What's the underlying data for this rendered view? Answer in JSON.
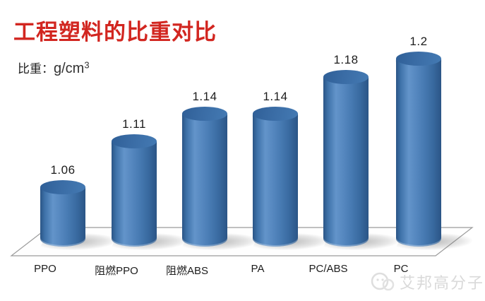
{
  "page": {
    "background": "#ffffff"
  },
  "title": {
    "text": "工程塑料的比重对比",
    "color": "#d22620"
  },
  "axis_label": {
    "prefix": "比重：",
    "unit": "g/cm",
    "exponent": "3"
  },
  "chart_data": {
    "type": "bar",
    "variant": "3d-cylinder",
    "title": "工程塑料的比重对比",
    "ylabel": "比重：g/cm³",
    "categories": [
      "PPO",
      "阻燃PPO",
      "阻燃ABS",
      "PA",
      "PC/ABS",
      "PC"
    ],
    "values": [
      1.06,
      1.11,
      1.14,
      1.14,
      1.18,
      1.2
    ],
    "data_labels": [
      "1.06",
      "1.11",
      "1.14",
      "1.14",
      "1.18",
      "1.2"
    ],
    "value_axis_baseline": 0.99,
    "grid": false,
    "legend": false,
    "bar_color": "#4679b2",
    "floor_edge_color": "#9b9b9b"
  },
  "watermark": {
    "logo": "aibang-logo",
    "text": "艾邦高分子",
    "color": "#d9d9d9"
  }
}
